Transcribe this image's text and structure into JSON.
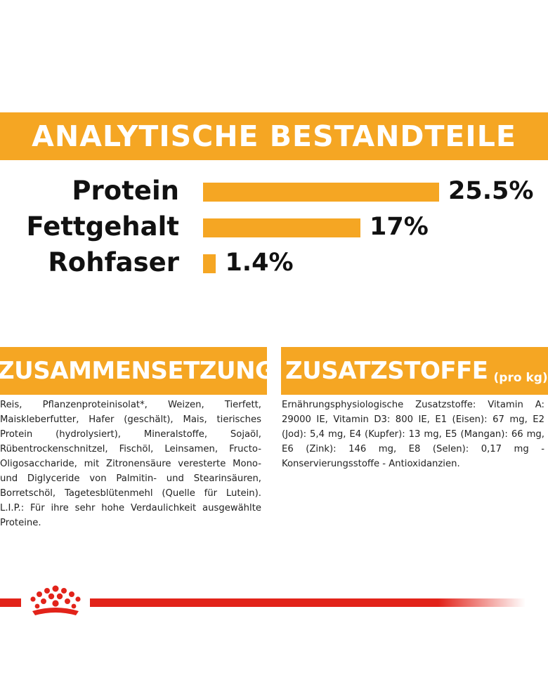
{
  "analysis": {
    "title": "ANALYTISCHE BESTANDTEILE",
    "items": [
      {
        "label": "Protein",
        "value": "25.5%",
        "percent": 25.5
      },
      {
        "label": "Fettgehalt",
        "value": "17%",
        "percent": 17
      },
      {
        "label": "Rohfaser",
        "value": "1.4%",
        "percent": 1.4
      }
    ]
  },
  "composition": {
    "title": "ZUSAMMENSETZUNG",
    "text": "Reis, Pflanzenproteinisolat*, Weizen, Tierfett, Maiskleberfutter, Hafer (geschält), Mais, tierisches Protein (hydrolysiert), Mineralstoffe, Sojaöl, Rübentrockenschnitzel, Fischöl, Leinsamen, Fructo-Oligosaccharide, mit Zitronensäure veresterte Mono- und Diglyceride von Palmitin- und Stearinsäuren, Borretschöl, Tagetesblütenmehl (Quelle für Lutein). L.I.P.: Für ihre sehr hohe Verdaulichkeit ausgewählte Proteine."
  },
  "additives": {
    "title": "ZUSATZSTOFFE",
    "subtitle": "(pro kg)",
    "text": "Ernährungsphysiologische Zusatzstoffe: Vitamin A: 29000 IE, Vitamin D3: 800 IE, E1 (Eisen): 67 mg, E2 (Jod): 5,4 mg, E4 (Kupfer): 13 mg, E5 (Mangan): 66 mg, E6 (Zink): 146 mg, E8 (Selen): 0,17 mg - Konservierungsstoffe - Antioxidanzien."
  },
  "colors": {
    "accent": "#f5a623",
    "brand_red": "#e2231a"
  },
  "logo": {
    "icon": "royal-canin-crown-icon"
  }
}
